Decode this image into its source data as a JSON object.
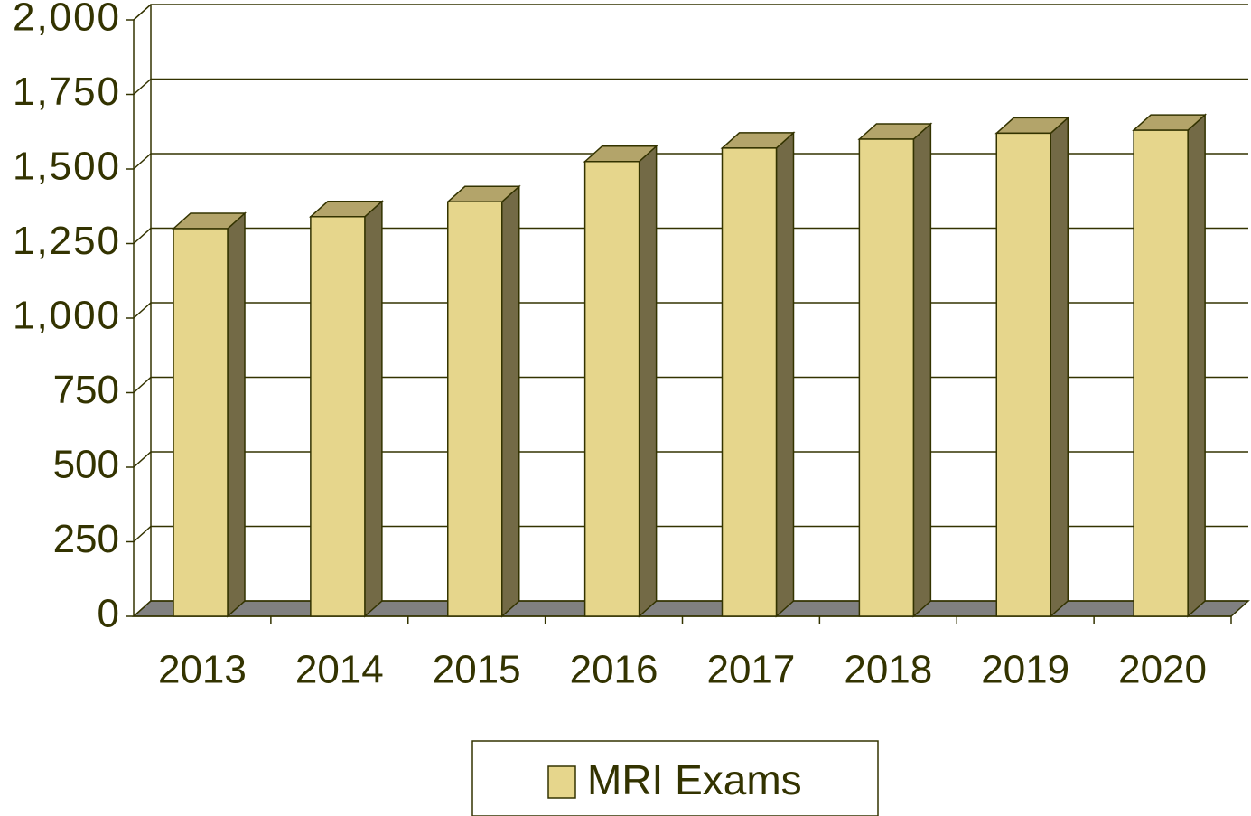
{
  "chart_data": {
    "type": "bar",
    "categories": [
      "2013",
      "2014",
      "2015",
      "2016",
      "2017",
      "2018",
      "2019",
      "2020"
    ],
    "series": [
      {
        "name": "MRI Exams",
        "color": "#e6d68c",
        "values": [
          1300,
          1340,
          1390,
          1525,
          1570,
          1600,
          1620,
          1630
        ]
      }
    ],
    "ylim": [
      0,
      2000
    ],
    "yticks": [
      0,
      250,
      500,
      750,
      {
        "value": 1000,
        "label": "1,000"
      },
      {
        "value": 1250,
        "label": "1,250"
      },
      {
        "value": 1500,
        "label": "1,500"
      },
      {
        "value": 1750,
        "label": "1,750"
      },
      {
        "value": 2000,
        "label": "2,000"
      }
    ],
    "grid": true
  }
}
